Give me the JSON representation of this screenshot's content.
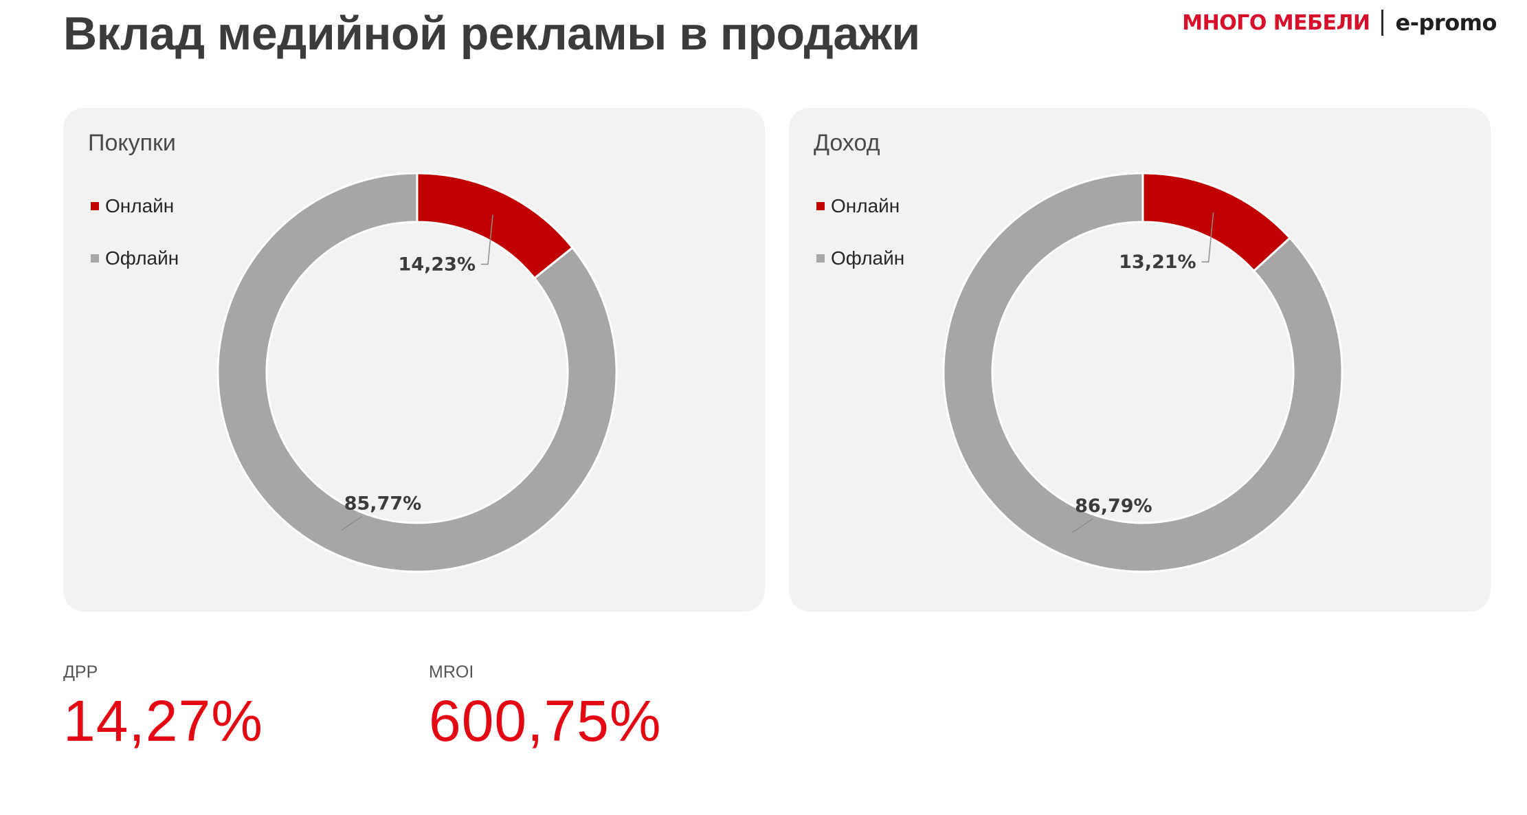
{
  "header": {
    "title": "Вклад медийной рекламы в продажи",
    "brand": "МНОГО МЕБЕЛИ",
    "partner": "e-promo"
  },
  "colors": {
    "online": "#c00000",
    "offline": "#a6a6a6",
    "accent": "#e30613",
    "panel_bg": "#f2f2f2"
  },
  "legend_items": [
    {
      "label": "Онлайн",
      "color": "#c00000"
    },
    {
      "label": "Офлайн",
      "color": "#a6a6a6"
    }
  ],
  "chart_data": [
    {
      "type": "pie",
      "donut": true,
      "title": "Покупки",
      "categories": [
        "Онлайн",
        "Офлайн"
      ],
      "values": [
        14.23,
        85.77
      ],
      "labels": [
        "14,23%",
        "85,77%"
      ],
      "colors": [
        "#c00000",
        "#a6a6a6"
      ],
      "legend": "top-left"
    },
    {
      "type": "pie",
      "donut": true,
      "title": "Доход",
      "categories": [
        "Онлайн",
        "Офлайн"
      ],
      "values": [
        13.21,
        86.79
      ],
      "labels": [
        "13,21%",
        "86,79%"
      ],
      "colors": [
        "#c00000",
        "#a6a6a6"
      ],
      "legend": "top-left"
    }
  ],
  "kpis": [
    {
      "label": "ДРР",
      "value": "14,27%"
    },
    {
      "label": "MROI",
      "value": "600,75%"
    }
  ]
}
